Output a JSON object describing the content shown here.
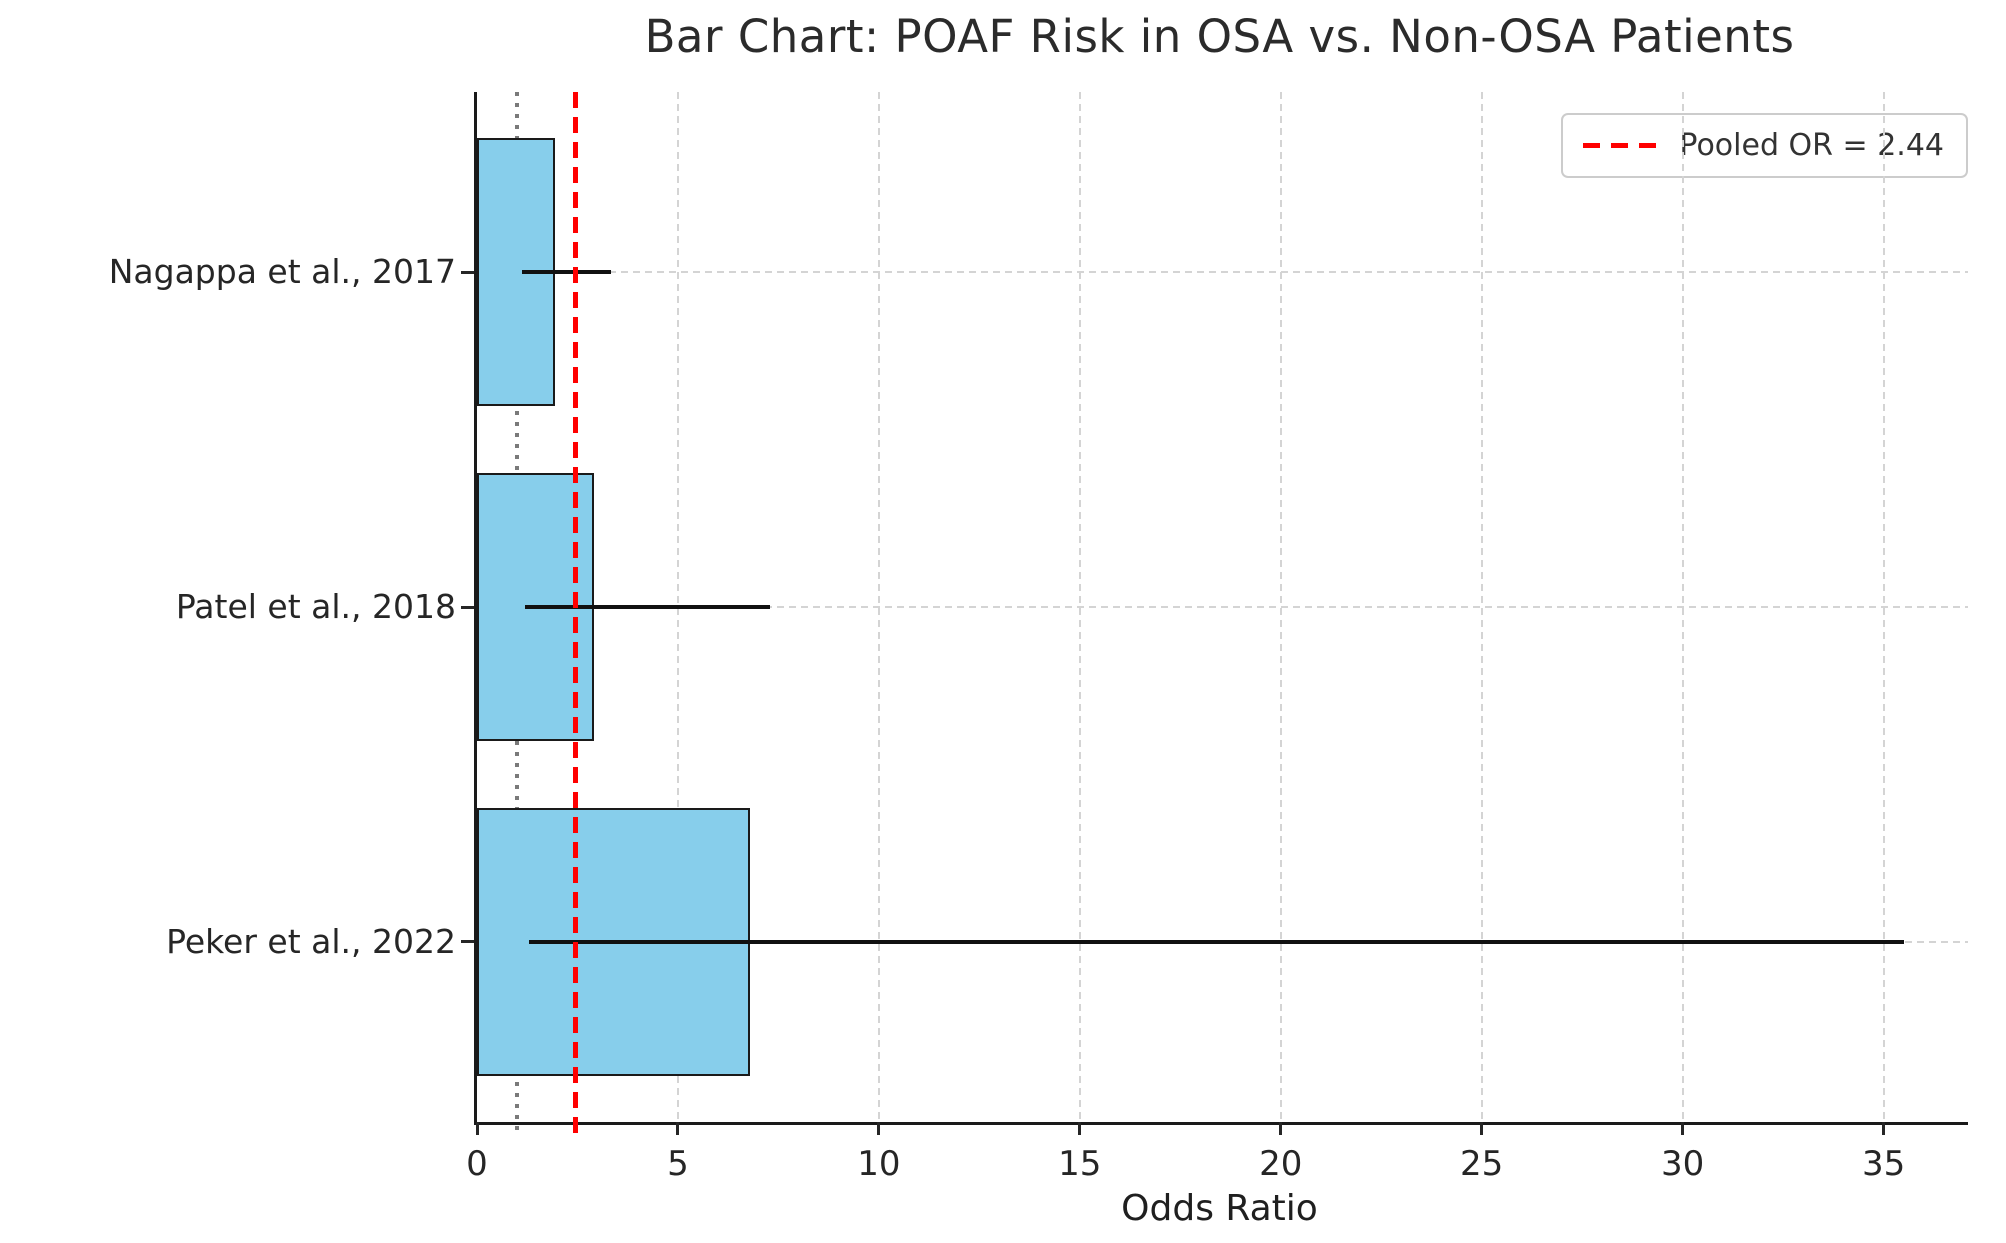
{
  "chart_data": {
    "type": "bar",
    "orientation": "horizontal",
    "title": "Bar Chart: POAF Risk in OSA vs. Non-OSA Patients",
    "xlabel": "Odds Ratio",
    "ylabel": "",
    "categories": [
      "Nagappa et al., 2017",
      "Patel et al., 2018",
      "Peker et al., 2022"
    ],
    "values": [
      1.94,
      2.9,
      6.8
    ],
    "ci_low": [
      1.13,
      1.2,
      1.3
    ],
    "ci_high": [
      3.33,
      7.3,
      35.5
    ],
    "reference_lines": [
      {
        "value": 1.0,
        "color": "#7a7a7a",
        "style": "dotted"
      },
      {
        "value": 2.44,
        "color": "#ff0000",
        "style": "dashed",
        "label": "Pooled OR = 2.44"
      }
    ],
    "legend": {
      "position": "upper right",
      "entries": [
        {
          "label": "Pooled OR = 2.44",
          "color": "#ff0000",
          "style": "dashed"
        }
      ]
    },
    "xlim": [
      0,
      37.1
    ],
    "xticks": [
      0,
      5,
      10,
      15,
      20,
      25,
      30,
      35
    ],
    "grid": true,
    "colors": {
      "bar_fill": "#87CEEB",
      "bar_edge": "#1a1a1a",
      "error_bar": "#111111",
      "grid_line": "#d4d4d4",
      "spine": "#1a1a1a",
      "pooled_line": "#ff0000",
      "unity_line": "#7a7a7a"
    }
  }
}
